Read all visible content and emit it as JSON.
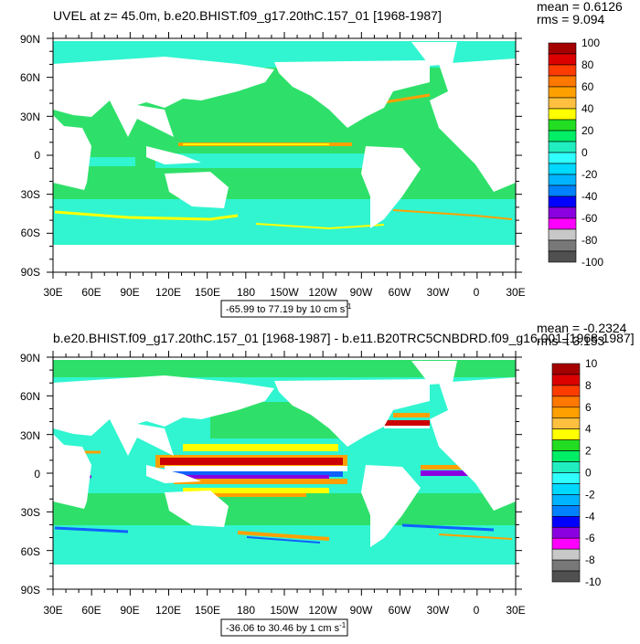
{
  "panels": [
    {
      "id": "top",
      "title": "UVEL at z=  45.0m, b.e20.BHIST.f09_g17.20thC.157_01 [1968-1987]",
      "mean": "mean = 0.6126",
      "rms": "rms = 9.094",
      "lat_labels": [
        "90N",
        "60N",
        "30N",
        "0",
        "30S",
        "60S",
        "90S"
      ],
      "lon_labels": [
        "30E",
        "60E",
        "90E",
        "120E",
        "150E",
        "180",
        "150W",
        "120W",
        "90W",
        "60W",
        "30W",
        "0",
        "30E"
      ],
      "range_label": "-65.99 to 77.19 by 10 cm s",
      "range_unit_sup": "-1",
      "colorbar": {
        "labels": [
          "100",
          "80",
          "60",
          "40",
          "20",
          "0",
          "-20",
          "-40",
          "-60",
          "-80",
          "-100"
        ],
        "colors": [
          "#a50000",
          "#dc0000",
          "#ff3c00",
          "#ff7800",
          "#ffa000",
          "#ffc040",
          "#ffff00",
          "#22dd22",
          "#00ee66",
          "#20eec0",
          "#30ffff",
          "#00d8ff",
          "#00b4ff",
          "#0082ff",
          "#0000ff",
          "#8a00e0",
          "#ff00ff",
          "#c8c8c8",
          "#787878",
          "#505050"
        ]
      }
    },
    {
      "id": "bottom",
      "title": "b.e20.BHIST.f09_g17.20thC.157_01 [1968-1987] - b.e11.B20TRC5CNBDRD.f09_g16.001 [1968-1987]",
      "mean": "mean = -0.2324",
      "rms": "rms = 3.153",
      "lat_labels": [
        "90N",
        "60N",
        "30N",
        "0",
        "30S",
        "60S",
        "90S"
      ],
      "lon_labels": [
        "30E",
        "60E",
        "90E",
        "120E",
        "150E",
        "180",
        "150W",
        "120W",
        "90W",
        "60W",
        "30W",
        "0",
        "30E"
      ],
      "range_label": "-36.06 to 30.46 by 1 cm s",
      "range_unit_sup": "-1",
      "colorbar": {
        "labels": [
          "10",
          "8",
          "6",
          "4",
          "2",
          "0",
          "-2",
          "-4",
          "-6",
          "-8",
          "-10"
        ],
        "colors": [
          "#a50000",
          "#dc0000",
          "#ff3c00",
          "#ff7800",
          "#ffa000",
          "#ffc040",
          "#ffff00",
          "#22dd22",
          "#00ee66",
          "#20eec0",
          "#30ffff",
          "#00d8ff",
          "#00b4ff",
          "#0082ff",
          "#0000ff",
          "#8a00e0",
          "#ff00ff",
          "#c8c8c8",
          "#787878",
          "#505050"
        ]
      }
    }
  ],
  "map_colors": {
    "ocean_bg": "#2ee06a",
    "cyan_zone": "#30f5d0",
    "land": "#ffffff",
    "jet_yellow": "#ffff00",
    "jet_orange": "#ffa000",
    "jet_red": "#cc0000",
    "blue": "#1060ff",
    "purple": "#8a00e0"
  }
}
